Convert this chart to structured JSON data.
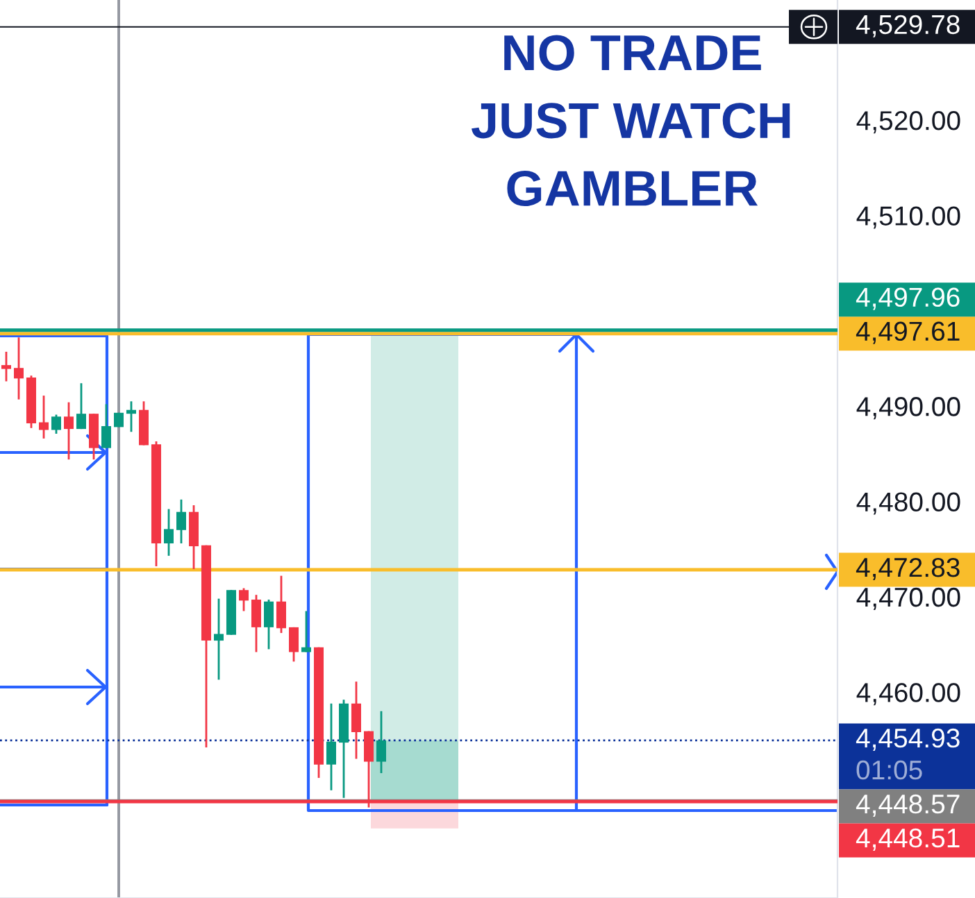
{
  "chart_data": {
    "type": "candlestick",
    "categories": [
      null,
      null,
      null,
      null,
      null,
      null,
      null,
      null,
      null,
      null,
      null,
      null,
      null,
      null,
      null,
      null,
      null,
      null,
      null,
      null,
      null,
      null,
      null,
      null,
      null,
      null,
      null,
      null,
      null,
      null,
      null,
      null,
      null,
      null,
      null,
      null,
      null,
      null,
      null,
      null,
      null,
      null,
      null,
      null,
      null,
      null,
      null,
      null,
      null,
      null,
      null,
      null,
      null,
      null,
      null,
      null,
      null,
      null,
      null,
      null,
      null,
      null,
      null,
      null,
      null,
      null,
      null
    ],
    "ohlc": [
      [
        4494.3,
        4495.7,
        4492.6,
        4493.9
      ],
      [
        4494.0,
        4497.2,
        4490.7,
        4492.9
      ],
      [
        4493.0,
        4493.2,
        4487.7,
        4488.2
      ],
      [
        4488.3,
        4491.1,
        4486.6,
        4487.5
      ],
      [
        4487.5,
        4489.1,
        4487.1,
        4488.9
      ],
      [
        4488.9,
        4490.4,
        4484.4,
        4487.6
      ],
      [
        4487.6,
        4492.4,
        4487.6,
        4489.2
      ],
      [
        4489.2,
        4489.2,
        4484.4,
        4485.6
      ],
      [
        4485.6,
        4490.2,
        4485.6,
        4487.9
      ],
      [
        4487.8,
        4489.3,
        4487.8,
        4489.3
      ],
      [
        4489.2,
        4490.5,
        4487.3,
        4489.6
      ],
      [
        4489.6,
        4490.5,
        4485.9,
        4485.9
      ],
      [
        4486.0,
        4486.3,
        4473.2,
        4475.6
      ],
      [
        4475.6,
        4479.2,
        4474.3,
        4477.1
      ],
      [
        4477.0,
        4480.2,
        4475.6,
        4478.9
      ],
      [
        4478.9,
        4479.6,
        4472.9,
        4475.3
      ],
      [
        4475.4,
        4475.4,
        4454.2,
        4465.4
      ],
      [
        4465.4,
        4469.8,
        4461.3,
        4466.1
      ],
      [
        4466.0,
        4470.7,
        4466.0,
        4470.7
      ],
      [
        4470.7,
        4470.9,
        4468.5,
        4469.6
      ],
      [
        4469.7,
        4470.2,
        4464.2,
        4466.8
      ],
      [
        4466.8,
        4469.7,
        4464.5,
        4469.5
      ],
      [
        4469.5,
        4472.2,
        4466.2,
        4466.7
      ],
      [
        4466.8,
        4466.8,
        4463.2,
        4464.2
      ],
      [
        4464.2,
        4468.5,
        4464.2,
        4464.7
      ],
      [
        4464.7,
        4464.7,
        4451.0,
        4452.4
      ],
      [
        4452.4,
        4458.8,
        4449.7,
        4454.8
      ],
      [
        4454.7,
        4459.2,
        4448.9,
        4458.8
      ],
      [
        4458.8,
        4461.1,
        4453.0,
        4455.8
      ],
      [
        4455.9,
        4455.9,
        4447.9,
        4452.7
      ],
      [
        4452.7,
        4458.0,
        4451.5,
        4454.93
      ],
      null,
      null,
      null,
      null,
      null,
      null,
      null,
      null,
      null,
      null,
      null,
      null,
      null,
      null,
      null,
      null,
      null,
      null,
      null,
      null,
      null,
      null,
      null,
      null,
      null,
      null,
      null,
      null,
      null,
      null,
      null,
      null,
      null,
      null,
      null,
      null
    ],
    "colors": [
      "#f23645",
      "#f23645",
      "#f23645",
      "#f23645",
      "#089981",
      "#f23645",
      "#089981",
      "#f23645",
      "#089981",
      "#089981",
      "#089981",
      "#f23645",
      "#f23645",
      "#089981",
      "#089981",
      "#f23645",
      "#f23645",
      "#089981",
      "#089981",
      "#f23645",
      "#f23645",
      "#089981",
      "#f23645",
      "#f23645",
      "#089981",
      "#f23645",
      "#089981",
      "#089981",
      "#f23645",
      "#f23645",
      "#089981",
      null,
      null,
      null,
      null,
      null,
      null,
      null,
      null,
      null,
      null,
      null,
      null,
      null,
      null,
      null,
      null,
      null,
      null,
      null,
      null,
      null,
      null,
      null,
      null,
      null,
      null,
      null,
      null,
      null,
      null,
      null,
      null,
      null,
      null,
      null,
      null
    ],
    "ylim": [
      4438.4,
      4532.6
    ],
    "yticks": [
      {
        "value": 4460,
        "label": "4,460.00"
      },
      {
        "value": 4470,
        "label": "4,470.00"
      },
      {
        "value": 4480,
        "label": "4,480.00"
      },
      {
        "value": 4490,
        "label": "4,490.00"
      },
      {
        "value": 4510,
        "label": "4,510.00"
      },
      {
        "value": 4520,
        "label": "4,520.00"
      }
    ],
    "tick_labels": "y",
    "ref_lines": [
      {
        "axis": "y",
        "value": 4529.78,
        "label": "4,529.78",
        "color": "#131722"
      },
      {
        "axis": "y",
        "value": 4497.61,
        "label": "4,497.61",
        "color": "#f9bd2b"
      },
      {
        "axis": "y",
        "value": 4497.96,
        "label": "4,497.96",
        "color": "#089981"
      },
      {
        "axis": "y",
        "value": 4472.83,
        "label": "4,472.83",
        "color": "#f9bd2b"
      },
      {
        "axis": "y",
        "value": 4454.93,
        "label": "4,454.93\n01:05",
        "color": "#0c3299",
        "line_style": "dotted"
      },
      {
        "axis": "y",
        "value": 4448.57,
        "label": "4,448.57",
        "color": "#808080"
      },
      {
        "axis": "y",
        "value": 4448.51,
        "label": "4,448.51",
        "color": "#f23645"
      }
    ],
    "bands": [
      {
        "axis": "y",
        "from": 4448.57,
        "to": 4497.96,
        "color": "#d1ece6"
      },
      {
        "axis": "y",
        "from": 4448.57,
        "to": 4454.93,
        "color": "#a6dbd0"
      },
      {
        "axis": "y",
        "from": 4445.7,
        "to": 4448.57,
        "color": "#fcd8dc"
      }
    ],
    "annotations": [
      "NO TRADE\nJUST WATCH\nGAMBLER"
    ]
  }
}
